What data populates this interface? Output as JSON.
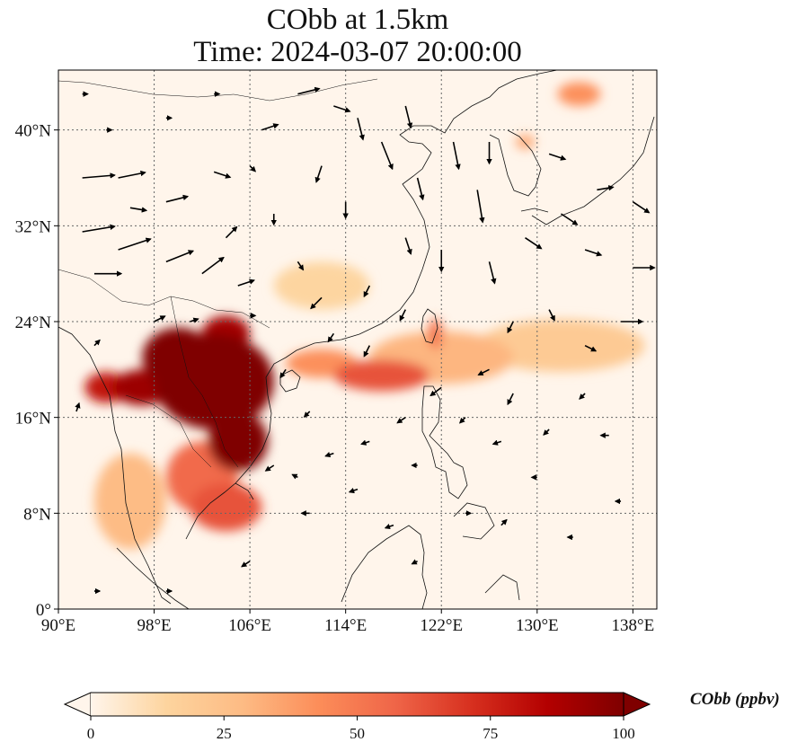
{
  "figure": {
    "title_line1": "CObb at 1.5km",
    "title_line2": "Time: 2024-03-07 20:00:00"
  },
  "map": {
    "lon_range": [
      90,
      140
    ],
    "lat_range": [
      0,
      45
    ],
    "lon_ticks": [
      {
        "value": 90,
        "label": "90°E"
      },
      {
        "value": 98,
        "label": "98°E"
      },
      {
        "value": 106,
        "label": "106°E"
      },
      {
        "value": 114,
        "label": "114°E"
      },
      {
        "value": 122,
        "label": "122°E"
      },
      {
        "value": 130,
        "label": "130°E"
      },
      {
        "value": 138,
        "label": "138°E"
      }
    ],
    "lat_ticks": [
      {
        "value": 0,
        "label": "0°"
      },
      {
        "value": 8,
        "label": "8°N"
      },
      {
        "value": 16,
        "label": "16°N"
      },
      {
        "value": 24,
        "label": "24°N"
      },
      {
        "value": 32,
        "label": "32°N"
      },
      {
        "value": 40,
        "label": "40°N"
      }
    ],
    "gridlines": true,
    "colors": {
      "background": "#fff5eb",
      "coast": "#111111",
      "grid": "#666666",
      "arrow": "#000000"
    },
    "plumes": [
      {
        "lon": 103,
        "lat": 19,
        "rx": 5,
        "ry": 4,
        "value": 100
      },
      {
        "lon": 100,
        "lat": 21,
        "rx": 3,
        "ry": 2.5,
        "value": 100
      },
      {
        "lon": 105,
        "lat": 14,
        "rx": 2.5,
        "ry": 2.5,
        "value": 100
      },
      {
        "lon": 97,
        "lat": 18.5,
        "rx": 2.5,
        "ry": 1.5,
        "value": 92
      },
      {
        "lon": 94,
        "lat": 18.5,
        "rx": 1.8,
        "ry": 1.3,
        "value": 80
      },
      {
        "lon": 104,
        "lat": 23,
        "rx": 2,
        "ry": 1.5,
        "value": 90
      },
      {
        "lon": 104,
        "lat": 8.5,
        "rx": 3,
        "ry": 2,
        "value": 62
      },
      {
        "lon": 102,
        "lat": 11,
        "rx": 3,
        "ry": 3,
        "value": 55
      },
      {
        "lon": 117,
        "lat": 19.5,
        "rx": 4,
        "ry": 1.3,
        "value": 62
      },
      {
        "lon": 112,
        "lat": 20.5,
        "rx": 3,
        "ry": 1.2,
        "value": 42
      },
      {
        "lon": 122,
        "lat": 21,
        "rx": 6,
        "ry": 2.2,
        "value": 30
      },
      {
        "lon": 132,
        "lat": 22,
        "rx": 7,
        "ry": 2.2,
        "value": 20
      },
      {
        "lon": 96,
        "lat": 9,
        "rx": 3,
        "ry": 4,
        "value": 28
      },
      {
        "lon": 133.5,
        "lat": 43,
        "rx": 1.8,
        "ry": 1,
        "value": 42
      },
      {
        "lon": 129,
        "lat": 39,
        "rx": 0.8,
        "ry": 0.6,
        "value": 35
      },
      {
        "lon": 112,
        "lat": 27,
        "rx": 4,
        "ry": 2,
        "value": 14
      },
      {
        "lon": 121.5,
        "lat": 23,
        "rx": 0.6,
        "ry": 1.3,
        "value": 52
      }
    ],
    "wind_arrows": [
      {
        "lon": 92,
        "lat": 36,
        "u": 6,
        "v": 0.5
      },
      {
        "lon": 95,
        "lat": 36,
        "u": 5,
        "v": 1
      },
      {
        "lon": 92,
        "lat": 31.5,
        "u": 6,
        "v": 1
      },
      {
        "lon": 95,
        "lat": 30,
        "u": 6,
        "v": 2
      },
      {
        "lon": 93,
        "lat": 28,
        "u": 5,
        "v": 0
      },
      {
        "lon": 99,
        "lat": 34,
        "u": 4,
        "v": 1
      },
      {
        "lon": 99,
        "lat": 29,
        "u": 5,
        "v": 2
      },
      {
        "lon": 102,
        "lat": 28,
        "u": 4,
        "v": 3
      },
      {
        "lon": 104,
        "lat": 31,
        "u": 2,
        "v": 2
      },
      {
        "lon": 105,
        "lat": 27,
        "u": 3,
        "v": 1
      },
      {
        "lon": 103,
        "lat": 36.5,
        "u": 3,
        "v": -1
      },
      {
        "lon": 107,
        "lat": 40,
        "u": 3,
        "v": 1
      },
      {
        "lon": 110,
        "lat": 43,
        "u": 4,
        "v": 1
      },
      {
        "lon": 113,
        "lat": 42,
        "u": 3,
        "v": -1
      },
      {
        "lon": 115,
        "lat": 41,
        "u": 1,
        "v": -4
      },
      {
        "lon": 117,
        "lat": 39,
        "u": 2,
        "v": -5
      },
      {
        "lon": 119,
        "lat": 42,
        "u": 1,
        "v": -4
      },
      {
        "lon": 120,
        "lat": 36,
        "u": 1,
        "v": -4
      },
      {
        "lon": 123,
        "lat": 39,
        "u": 1,
        "v": -5
      },
      {
        "lon": 125,
        "lat": 35,
        "u": 1,
        "v": -6
      },
      {
        "lon": 126,
        "lat": 39,
        "u": 0,
        "v": -4
      },
      {
        "lon": 114,
        "lat": 34,
        "u": 0,
        "v": -3
      },
      {
        "lon": 112,
        "lat": 37,
        "u": -1,
        "v": -3
      },
      {
        "lon": 119,
        "lat": 31,
        "u": 1,
        "v": -3
      },
      {
        "lon": 122,
        "lat": 30,
        "u": 0,
        "v": -4
      },
      {
        "lon": 126,
        "lat": 29,
        "u": 1,
        "v": -4
      },
      {
        "lon": 129,
        "lat": 31,
        "u": 3,
        "v": -2
      },
      {
        "lon": 132,
        "lat": 33,
        "u": 3,
        "v": -2
      },
      {
        "lon": 134,
        "lat": 30,
        "u": 3,
        "v": -1
      },
      {
        "lon": 131,
        "lat": 38,
        "u": 3,
        "v": -1
      },
      {
        "lon": 135,
        "lat": 35,
        "u": 3,
        "v": 0.5
      },
      {
        "lon": 138,
        "lat": 34,
        "u": 3,
        "v": -2
      },
      {
        "lon": 138,
        "lat": 28.5,
        "u": 4,
        "v": 0
      },
      {
        "lon": 137,
        "lat": 24,
        "u": 4,
        "v": 0
      },
      {
        "lon": 112,
        "lat": 26,
        "u": -2,
        "v": -2
      },
      {
        "lon": 116,
        "lat": 27,
        "u": -1,
        "v": -2
      },
      {
        "lon": 110,
        "lat": 29,
        "u": 1,
        "v": -1.5
      },
      {
        "lon": 108,
        "lat": 33,
        "u": 0,
        "v": -2
      },
      {
        "lon": 106,
        "lat": 37,
        "u": 1,
        "v": -1
      },
      {
        "lon": 96,
        "lat": 33.5,
        "u": 3,
        "v": -0.5
      },
      {
        "lon": 128,
        "lat": 24,
        "u": -1,
        "v": -2
      },
      {
        "lon": 131,
        "lat": 25,
        "u": 1,
        "v": -2
      },
      {
        "lon": 134,
        "lat": 22,
        "u": 2,
        "v": -1
      },
      {
        "lon": 126,
        "lat": 20,
        "u": -2,
        "v": -1
      },
      {
        "lon": 122,
        "lat": 18.5,
        "u": -2,
        "v": -1.5
      },
      {
        "lon": 128,
        "lat": 18,
        "u": -1,
        "v": -2
      },
      {
        "lon": 134,
        "lat": 18,
        "u": -1,
        "v": -1
      },
      {
        "lon": 131,
        "lat": 15,
        "u": -1,
        "v": -1
      },
      {
        "lon": 136,
        "lat": 14.5,
        "u": -1.5,
        "v": 0
      },
      {
        "lon": 127,
        "lat": 14,
        "u": -1.5,
        "v": -0.5
      },
      {
        "lon": 124,
        "lat": 16,
        "u": -1,
        "v": -1
      },
      {
        "lon": 119,
        "lat": 16,
        "u": -1.5,
        "v": -1
      },
      {
        "lon": 116,
        "lat": 14,
        "u": -1.5,
        "v": -0.5
      },
      {
        "lon": 113,
        "lat": 13,
        "u": -1.5,
        "v": -0.5
      },
      {
        "lon": 111,
        "lat": 16.5,
        "u": -1,
        "v": -1
      },
      {
        "lon": 115,
        "lat": 10,
        "u": -1.5,
        "v": -0.5
      },
      {
        "lon": 111,
        "lat": 8,
        "u": -1.5,
        "v": 0
      },
      {
        "lon": 118,
        "lat": 7,
        "u": -1.5,
        "v": -0.5
      },
      {
        "lon": 124,
        "lat": 8,
        "u": 1,
        "v": 0
      },
      {
        "lon": 127,
        "lat": 7,
        "u": 1,
        "v": 1
      },
      {
        "lon": 120,
        "lat": 4,
        "u": -1,
        "v": -0.5
      },
      {
        "lon": 106,
        "lat": 4,
        "u": -1.5,
        "v": -1
      },
      {
        "lon": 99,
        "lat": 1.5,
        "u": 1,
        "v": 0
      },
      {
        "lon": 93,
        "lat": 1.5,
        "u": 1,
        "v": 0
      },
      {
        "lon": 108,
        "lat": 12,
        "u": -1.5,
        "v": -1
      },
      {
        "lon": 109,
        "lat": 20,
        "u": -1,
        "v": -1.5
      },
      {
        "lon": 116,
        "lat": 22,
        "u": -1,
        "v": -2
      },
      {
        "lon": 113,
        "lat": 23,
        "u": -1,
        "v": -1.5
      },
      {
        "lon": 119,
        "lat": 25,
        "u": -1,
        "v": -2
      },
      {
        "lon": 93,
        "lat": 22,
        "u": 1,
        "v": 1
      },
      {
        "lon": 91.5,
        "lat": 16.5,
        "u": 0.5,
        "v": 1.5
      },
      {
        "lon": 98,
        "lat": 24,
        "u": 2,
        "v": 1
      },
      {
        "lon": 101,
        "lat": 24,
        "u": 1.5,
        "v": 0.5
      },
      {
        "lon": 94,
        "lat": 40,
        "u": 1,
        "v": 0
      },
      {
        "lon": 99,
        "lat": 41,
        "u": 1,
        "v": 0
      },
      {
        "lon": 103,
        "lat": 43,
        "u": 1,
        "v": 0
      },
      {
        "lon": 92,
        "lat": 43,
        "u": 1,
        "v": 0
      },
      {
        "lon": 106,
        "lat": 24.5,
        "u": 1,
        "v": 0
      },
      {
        "lon": 110,
        "lat": 11,
        "u": -1,
        "v": 0.5
      },
      {
        "lon": 120,
        "lat": 12,
        "u": -1,
        "v": 0
      },
      {
        "lon": 130,
        "lat": 11,
        "u": -1,
        "v": 0
      },
      {
        "lon": 137,
        "lat": 9,
        "u": -1,
        "v": 0
      },
      {
        "lon": 133,
        "lat": 6,
        "u": -1,
        "v": 0
      }
    ]
  },
  "colorbar": {
    "title": "CObb (ppbv)",
    "min": 0,
    "max": 100,
    "ticks": [
      {
        "value": 0,
        "label": "0"
      },
      {
        "value": 25,
        "label": "25"
      },
      {
        "value": 50,
        "label": "50"
      },
      {
        "value": 75,
        "label": "75"
      },
      {
        "value": 100,
        "label": "100"
      }
    ],
    "stops": [
      "#fff5eb",
      "#fdd49e",
      "#fdbb84",
      "#fc8d59",
      "#ef6548",
      "#d7301f",
      "#b30000",
      "#7f0000"
    ],
    "extend": "both"
  }
}
